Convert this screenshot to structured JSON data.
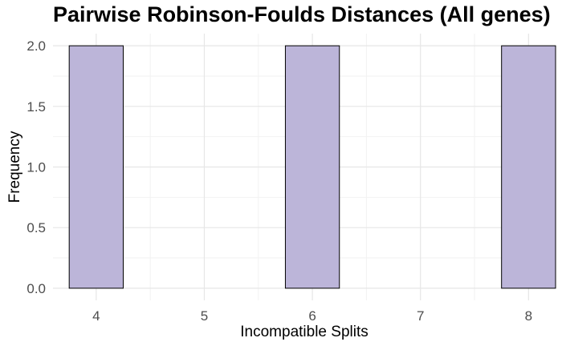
{
  "chart_data": {
    "type": "bar",
    "title": "Pairwise Robinson-Foulds Distances (All genes)",
    "xlabel": "Incompatible Splits",
    "ylabel": "Frequency",
    "x": [
      4,
      5,
      6,
      7,
      8
    ],
    "x_tick_labels": [
      "4",
      "5",
      "6",
      "7",
      "8"
    ],
    "values": [
      2,
      0,
      2,
      0,
      2
    ],
    "bin_width": 0.5,
    "xlim": [
      3.6,
      8.25
    ],
    "ylim": [
      -0.1,
      2.1
    ],
    "y_ticks": [
      0,
      0.5,
      1,
      1.5,
      2
    ],
    "y_tick_labels": [
      "0.0",
      "0.5",
      "1.0",
      "1.5",
      "2.0"
    ],
    "bar_fill": "#bcb5d9",
    "bar_stroke": "#000000",
    "grid": true,
    "legend": "none"
  }
}
